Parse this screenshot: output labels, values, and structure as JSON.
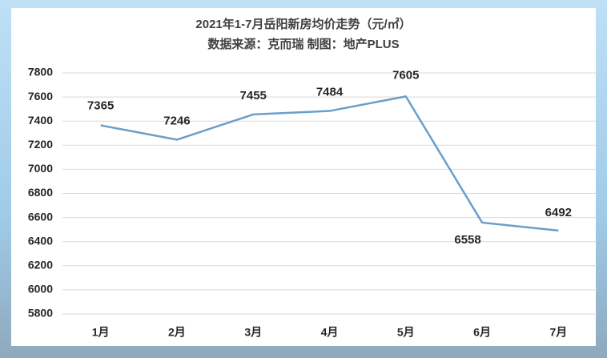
{
  "chart_data": {
    "type": "line",
    "title": "2021年1-7月岳阳新房均价走势（元/㎡）",
    "subtitle": "数据来源：克而瑞 制图：地产PLUS",
    "categories": [
      "1月",
      "2月",
      "3月",
      "4月",
      "5月",
      "6月",
      "7月"
    ],
    "values": [
      7365,
      7246,
      7455,
      7484,
      7605,
      6558,
      6492
    ],
    "color": "#6a9fcb",
    "ylim": [
      5800,
      7800
    ],
    "yticks": [
      5800,
      6000,
      6200,
      6400,
      6600,
      6800,
      7000,
      7200,
      7400,
      7600,
      7800
    ],
    "grid": true
  }
}
